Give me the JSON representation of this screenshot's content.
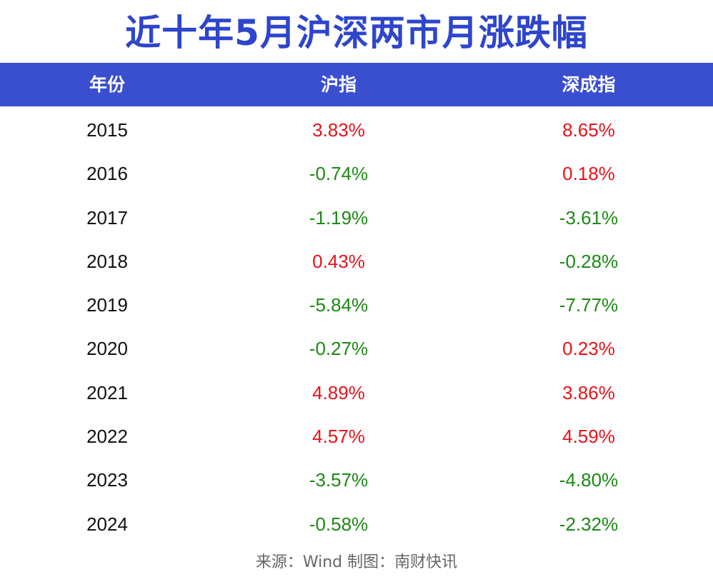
{
  "title": "近十年5月沪深两市月涨跌幅",
  "colors": {
    "title": "#2e45cc",
    "header_bg": "#3a4fd0",
    "header_text": "#ffffff",
    "positive": "#e8121a",
    "negative": "#1c8a12",
    "year_text": "#111111",
    "footer_text": "#666666"
  },
  "footer": "来源：Wind 制图：南财快讯",
  "chart_data": {
    "type": "table",
    "columns": [
      "年份",
      "沪指",
      "深成指"
    ],
    "rows": [
      {
        "year": "2015",
        "sh": "3.83%",
        "sz": "8.65%",
        "sh_value": 3.83,
        "sz_value": 8.65
      },
      {
        "year": "2016",
        "sh": "-0.74%",
        "sz": "0.18%",
        "sh_value": -0.74,
        "sz_value": 0.18
      },
      {
        "year": "2017",
        "sh": "-1.19%",
        "sz": "-3.61%",
        "sh_value": -1.19,
        "sz_value": -3.61
      },
      {
        "year": "2018",
        "sh": "0.43%",
        "sz": "-0.28%",
        "sh_value": 0.43,
        "sz_value": -0.28
      },
      {
        "year": "2019",
        "sh": "-5.84%",
        "sz": "-7.77%",
        "sh_value": -5.84,
        "sz_value": -7.77
      },
      {
        "year": "2020",
        "sh": "-0.27%",
        "sz": "0.23%",
        "sh_value": -0.27,
        "sz_value": 0.23
      },
      {
        "year": "2021",
        "sh": "4.89%",
        "sz": "3.86%",
        "sh_value": 4.89,
        "sz_value": 3.86
      },
      {
        "year": "2022",
        "sh": "4.57%",
        "sz": "4.59%",
        "sh_value": 4.57,
        "sz_value": 4.59
      },
      {
        "year": "2023",
        "sh": "-3.57%",
        "sz": "-4.80%",
        "sh_value": -3.57,
        "sz_value": -4.8
      },
      {
        "year": "2024",
        "sh": "-0.58%",
        "sz": "-2.32%",
        "sh_value": -0.58,
        "sz_value": -2.32
      }
    ]
  }
}
